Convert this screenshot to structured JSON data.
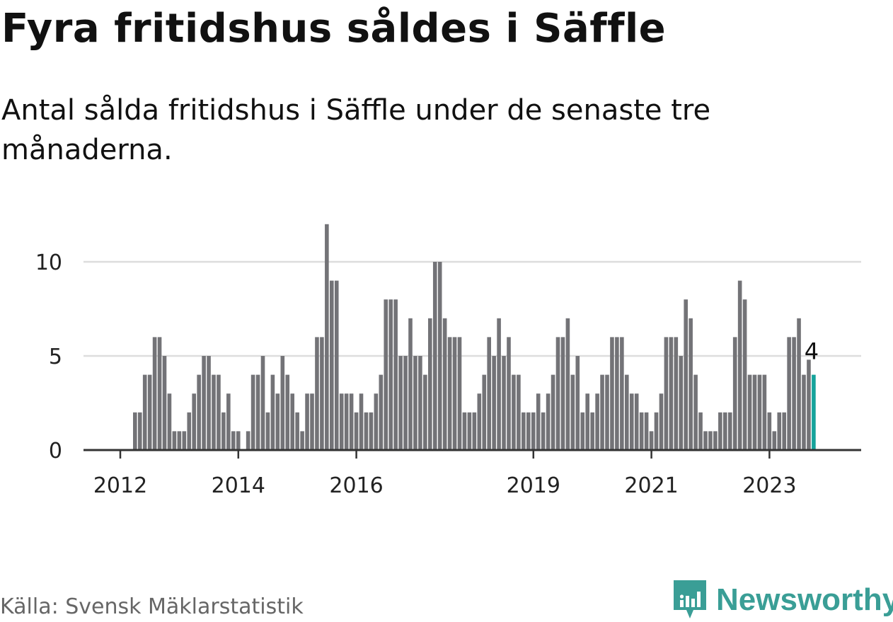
{
  "title": "Fyra fritidshus såldes i Säffle",
  "subtitle": "Antal sålda fritidshus i Säffle under de senaste tre månaderna.",
  "source": "Källa: Svensk Mäklarstatistik",
  "brand": "Newsworthy",
  "colors": {
    "bar": "#737377",
    "highlight": "#15a39b",
    "grid": "#dddddd",
    "axis": "#333333"
  },
  "chart_data": {
    "type": "bar",
    "xlabel": "",
    "ylabel": "",
    "ylim": [
      0,
      12
    ],
    "yticks": [
      0,
      5,
      10
    ],
    "xticks": [
      "2012",
      "2014",
      "2016",
      "2019",
      "2021",
      "2023"
    ],
    "grid": true,
    "values": [
      2,
      2,
      4,
      4,
      6,
      6,
      5,
      3,
      1,
      1,
      1,
      2,
      3,
      4,
      5,
      5,
      4,
      4,
      2,
      3,
      1,
      1,
      0,
      1,
      4,
      4,
      5,
      2,
      4,
      3,
      5,
      4,
      3,
      2,
      1,
      3,
      3,
      6,
      6,
      12,
      9,
      9,
      3,
      3,
      3,
      2,
      3,
      2,
      2,
      3,
      4,
      8,
      8,
      8,
      5,
      5,
      7,
      5,
      5,
      4,
      7,
      10,
      10,
      7,
      6,
      6,
      6,
      2,
      2,
      2,
      3,
      4,
      6,
      5,
      7,
      5,
      6,
      4,
      4,
      2,
      2,
      2,
      3,
      2,
      3,
      4,
      6,
      6,
      7,
      4,
      5,
      2,
      3,
      2,
      3,
      4,
      4,
      6,
      6,
      6,
      4,
      3,
      3,
      2,
      2,
      1,
      2,
      3,
      6,
      6,
      6,
      5,
      8,
      7,
      4,
      2,
      1,
      1,
      1,
      2,
      2,
      2,
      6,
      9,
      8,
      4,
      4,
      4,
      4,
      2,
      1,
      2,
      2,
      6,
      6,
      7,
      4,
      4.8,
      4
    ],
    "highlight_last_label": "4"
  }
}
